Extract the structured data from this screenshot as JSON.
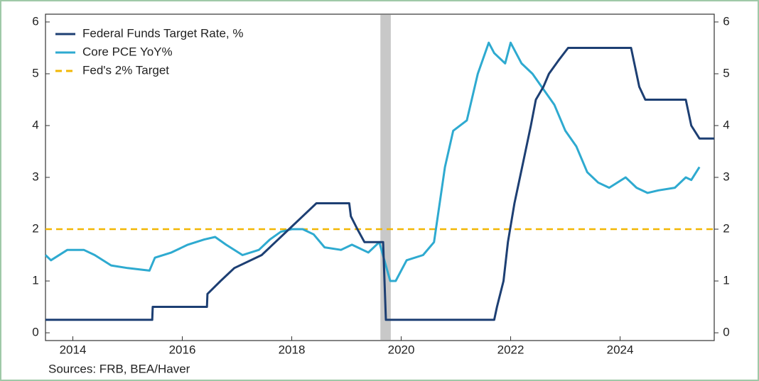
{
  "chart_data": {
    "type": "line",
    "source": "Sources:  FRB, BEA/Haver",
    "xlim": [
      2014,
      2026.22
    ],
    "xticks": [
      {
        "value": 2014.5,
        "label": "2014"
      },
      {
        "value": 2016.5,
        "label": "2016"
      },
      {
        "value": 2018.5,
        "label": "2018"
      },
      {
        "value": 2020.5,
        "label": "2020"
      },
      {
        "value": 2022.5,
        "label": "2022"
      },
      {
        "value": 2024.5,
        "label": "2024"
      }
    ],
    "ylim": [
      -0.15,
      6.15
    ],
    "yticks": [
      0,
      1,
      2,
      3,
      4,
      5,
      6
    ],
    "y2lim": [
      -0.15,
      6.15
    ],
    "y2ticks": [
      0,
      1,
      2,
      3,
      4,
      5,
      6
    ],
    "recession": [
      2020.12,
      2020.31
    ],
    "recession_color": "#c8c8c8",
    "legend": "upper left",
    "series": [
      {
        "name": "Federal Funds Target Rate, %",
        "color": "#1d3f73",
        "dash": false,
        "x": [
          2014.0,
          2015.95,
          2015.96,
          2016.95,
          2016.96,
          2017.2,
          2017.45,
          2017.95,
          2018.2,
          2018.45,
          2018.7,
          2018.95,
          2019.55,
          2019.58,
          2019.7,
          2019.83,
          2020.17,
          2020.22,
          2022.2,
          2022.25,
          2022.37,
          2022.45,
          2022.57,
          2022.72,
          2022.87,
          2022.96,
          2023.1,
          2023.2,
          2023.37,
          2023.55,
          2024.7,
          2024.85,
          2024.96,
          2025.7,
          2025.8,
          2025.95,
          2026.22
        ],
        "values": [
          0.25,
          0.25,
          0.5,
          0.5,
          0.75,
          1.0,
          1.25,
          1.5,
          1.75,
          2.0,
          2.25,
          2.5,
          2.5,
          2.25,
          2.0,
          1.75,
          1.75,
          0.25,
          0.25,
          0.5,
          1.0,
          1.75,
          2.5,
          3.25,
          4.0,
          4.5,
          4.75,
          5.0,
          5.25,
          5.5,
          5.5,
          4.75,
          4.5,
          4.5,
          4.0,
          3.75,
          3.75
        ]
      },
      {
        "name": "Core PCE YoY%",
        "color": "#2eaad0",
        "dash": false,
        "x": [
          2014.0,
          2014.1,
          2014.4,
          2014.7,
          2014.9,
          2015.2,
          2015.5,
          2015.9,
          2016.0,
          2016.3,
          2016.6,
          2016.9,
          2017.1,
          2017.3,
          2017.6,
          2017.9,
          2018.1,
          2018.3,
          2018.5,
          2018.7,
          2018.9,
          2019.1,
          2019.4,
          2019.6,
          2019.9,
          2020.1,
          2020.3,
          2020.4,
          2020.6,
          2020.9,
          2021.1,
          2021.3,
          2021.45,
          2021.7,
          2021.9,
          2022.1,
          2022.2,
          2022.4,
          2022.5,
          2022.7,
          2022.9,
          2023.1,
          2023.3,
          2023.5,
          2023.7,
          2023.9,
          2024.1,
          2024.3,
          2024.6,
          2024.8,
          2025.0,
          2025.2,
          2025.5,
          2025.7,
          2025.8,
          2025.95
        ],
        "values": [
          1.5,
          1.4,
          1.6,
          1.6,
          1.5,
          1.3,
          1.25,
          1.2,
          1.45,
          1.55,
          1.7,
          1.8,
          1.85,
          1.7,
          1.5,
          1.6,
          1.8,
          1.95,
          2.0,
          2.0,
          1.9,
          1.65,
          1.6,
          1.7,
          1.55,
          1.75,
          1.0,
          1.0,
          1.4,
          1.5,
          1.75,
          3.2,
          3.9,
          4.1,
          5.0,
          5.6,
          5.4,
          5.2,
          5.6,
          5.2,
          5.0,
          4.7,
          4.4,
          3.9,
          3.6,
          3.1,
          2.9,
          2.8,
          3.0,
          2.8,
          2.7,
          2.75,
          2.8,
          3.0,
          2.95,
          3.2
        ]
      },
      {
        "name": "Fed's 2% Target",
        "color": "#f2b705",
        "dash": true,
        "x": [
          2014.0,
          2026.22
        ],
        "values": [
          2,
          2
        ]
      }
    ]
  }
}
